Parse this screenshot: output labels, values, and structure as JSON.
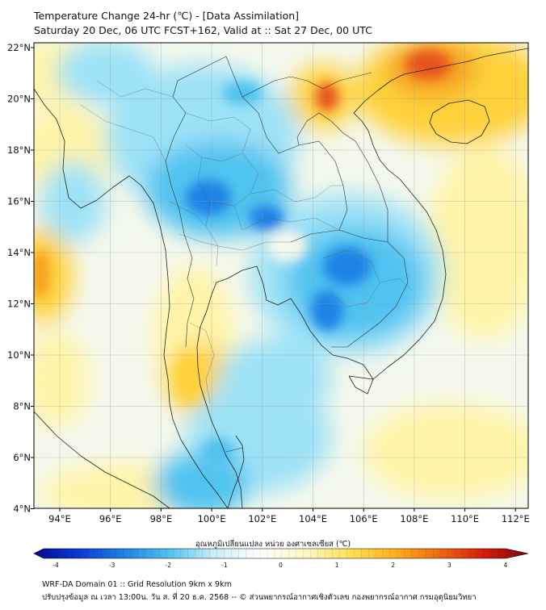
{
  "header": {
    "title_line1": "Temperature Change 24-hr (℃) - [Data Assimilation]",
    "title_line2": "Saturday 20 Dec, 06 UTC FCST+162, Valid at :: Sat 27 Dec, 00 UTC"
  },
  "map": {
    "lon_labels": [
      "94°E",
      "96°E",
      "98°E",
      "100°E",
      "102°E",
      "104°E",
      "106°E",
      "108°E",
      "110°E",
      "112°E"
    ],
    "lat_labels": [
      "22°N",
      "20°N",
      "18°N",
      "16°N",
      "14°N",
      "12°N",
      "10°N",
      "8°N",
      "6°N",
      "4°N"
    ],
    "colors": {
      "cold_strong": "#1e82e6",
      "cold_mid": "#4fc3f0",
      "cold_light": "#9de2f7",
      "neutral": "#f4f8ec",
      "warm_light": "#fff4a8",
      "warm_mid": "#ffd23a",
      "warm_strong": "#f5a022",
      "hot": "#e8531a"
    }
  },
  "colorbar": {
    "title": "อุณหภูมิเปลี่ยนแปลง หน่วย องศาเซลเซียส (℃)",
    "ticks": [
      "-4",
      "-3",
      "-2",
      "-1",
      "0",
      "1",
      "2",
      "3",
      "4"
    ],
    "range": [
      -4,
      4
    ],
    "colors": [
      "#08088c",
      "#0a3ad8",
      "#1e82e6",
      "#4fc3f0",
      "#c8eef8",
      "#ffffff",
      "#fff9c8",
      "#ffe35a",
      "#ffb21e",
      "#f06a12",
      "#d81c0c",
      "#7a0606"
    ]
  },
  "footer": {
    "line1": "WRF-DA Domain 01 :: Grid Resolution 9km x 9km",
    "line2": "ปรับปรุงข้อมูล ณ เวลา 13:00น. วัน ส. ที่ 20 ธ.ค. 2568 -- © ส่วนพยากรณ์อากาศเชิงตัวเลข กองพยากรณ์อากาศ กรมอุตุนิยมวิทยา"
  }
}
